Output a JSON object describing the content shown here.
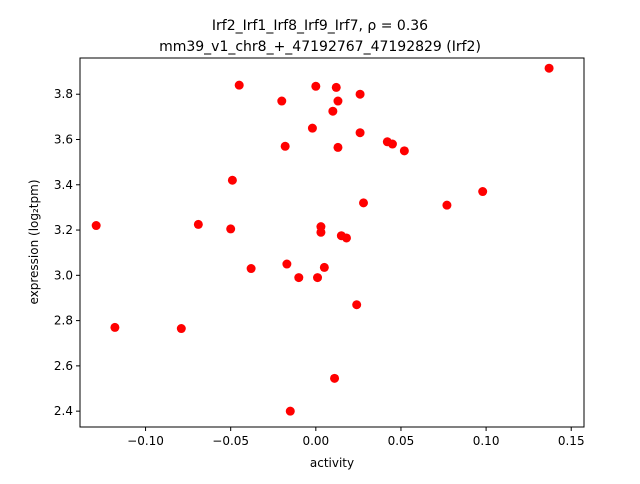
{
  "chart_data": {
    "type": "scatter",
    "title_line1": "Irf2_Irf1_Irf8_Irf9_Irf7, ρ = 0.36",
    "title_line2": "mm39_v1_chr8_+_47192767_47192829 (Irf2)",
    "xlabel": "activity",
    "ylabel": "expression (log₂tpm)",
    "xlim": [
      -0.1385,
      0.1575
    ],
    "ylim": [
      2.33,
      3.96
    ],
    "xticks": [
      {
        "value": -0.1,
        "label": "−0.10"
      },
      {
        "value": -0.05,
        "label": "−0.05"
      },
      {
        "value": 0.0,
        "label": "0.00"
      },
      {
        "value": 0.05,
        "label": "0.05"
      },
      {
        "value": 0.1,
        "label": "0.10"
      },
      {
        "value": 0.15,
        "label": "0.15"
      }
    ],
    "yticks": [
      {
        "value": 2.4,
        "label": "2.4"
      },
      {
        "value": 2.6,
        "label": "2.6"
      },
      {
        "value": 2.8,
        "label": "2.8"
      },
      {
        "value": 3.0,
        "label": "3.0"
      },
      {
        "value": 3.2,
        "label": "3.2"
      },
      {
        "value": 3.4,
        "label": "3.4"
      },
      {
        "value": 3.6,
        "label": "3.6"
      },
      {
        "value": 3.8,
        "label": "3.8"
      }
    ],
    "grid": false,
    "marker_color": "#ff0000",
    "points": [
      {
        "x": -0.129,
        "y": 3.22
      },
      {
        "x": -0.118,
        "y": 2.77
      },
      {
        "x": -0.079,
        "y": 2.765
      },
      {
        "x": -0.069,
        "y": 3.225
      },
      {
        "x": -0.05,
        "y": 3.205
      },
      {
        "x": -0.049,
        "y": 3.42
      },
      {
        "x": -0.045,
        "y": 3.84
      },
      {
        "x": -0.038,
        "y": 3.03
      },
      {
        "x": -0.02,
        "y": 3.77
      },
      {
        "x": -0.018,
        "y": 3.57
      },
      {
        "x": -0.017,
        "y": 3.05
      },
      {
        "x": -0.015,
        "y": 2.4
      },
      {
        "x": -0.01,
        "y": 2.99
      },
      {
        "x": -0.002,
        "y": 3.65
      },
      {
        "x": 0.0,
        "y": 3.835
      },
      {
        "x": 0.001,
        "y": 2.99
      },
      {
        "x": 0.003,
        "y": 3.215
      },
      {
        "x": 0.003,
        "y": 3.19
      },
      {
        "x": 0.005,
        "y": 3.035
      },
      {
        "x": 0.01,
        "y": 3.725
      },
      {
        "x": 0.011,
        "y": 2.545
      },
      {
        "x": 0.012,
        "y": 3.83
      },
      {
        "x": 0.013,
        "y": 3.77
      },
      {
        "x": 0.013,
        "y": 3.565
      },
      {
        "x": 0.015,
        "y": 3.175
      },
      {
        "x": 0.018,
        "y": 3.165
      },
      {
        "x": 0.024,
        "y": 2.87
      },
      {
        "x": 0.026,
        "y": 3.8
      },
      {
        "x": 0.026,
        "y": 3.63
      },
      {
        "x": 0.028,
        "y": 3.32
      },
      {
        "x": 0.042,
        "y": 3.59
      },
      {
        "x": 0.045,
        "y": 3.58
      },
      {
        "x": 0.052,
        "y": 3.55
      },
      {
        "x": 0.077,
        "y": 3.31
      },
      {
        "x": 0.098,
        "y": 3.37
      },
      {
        "x": 0.137,
        "y": 3.915
      }
    ]
  }
}
